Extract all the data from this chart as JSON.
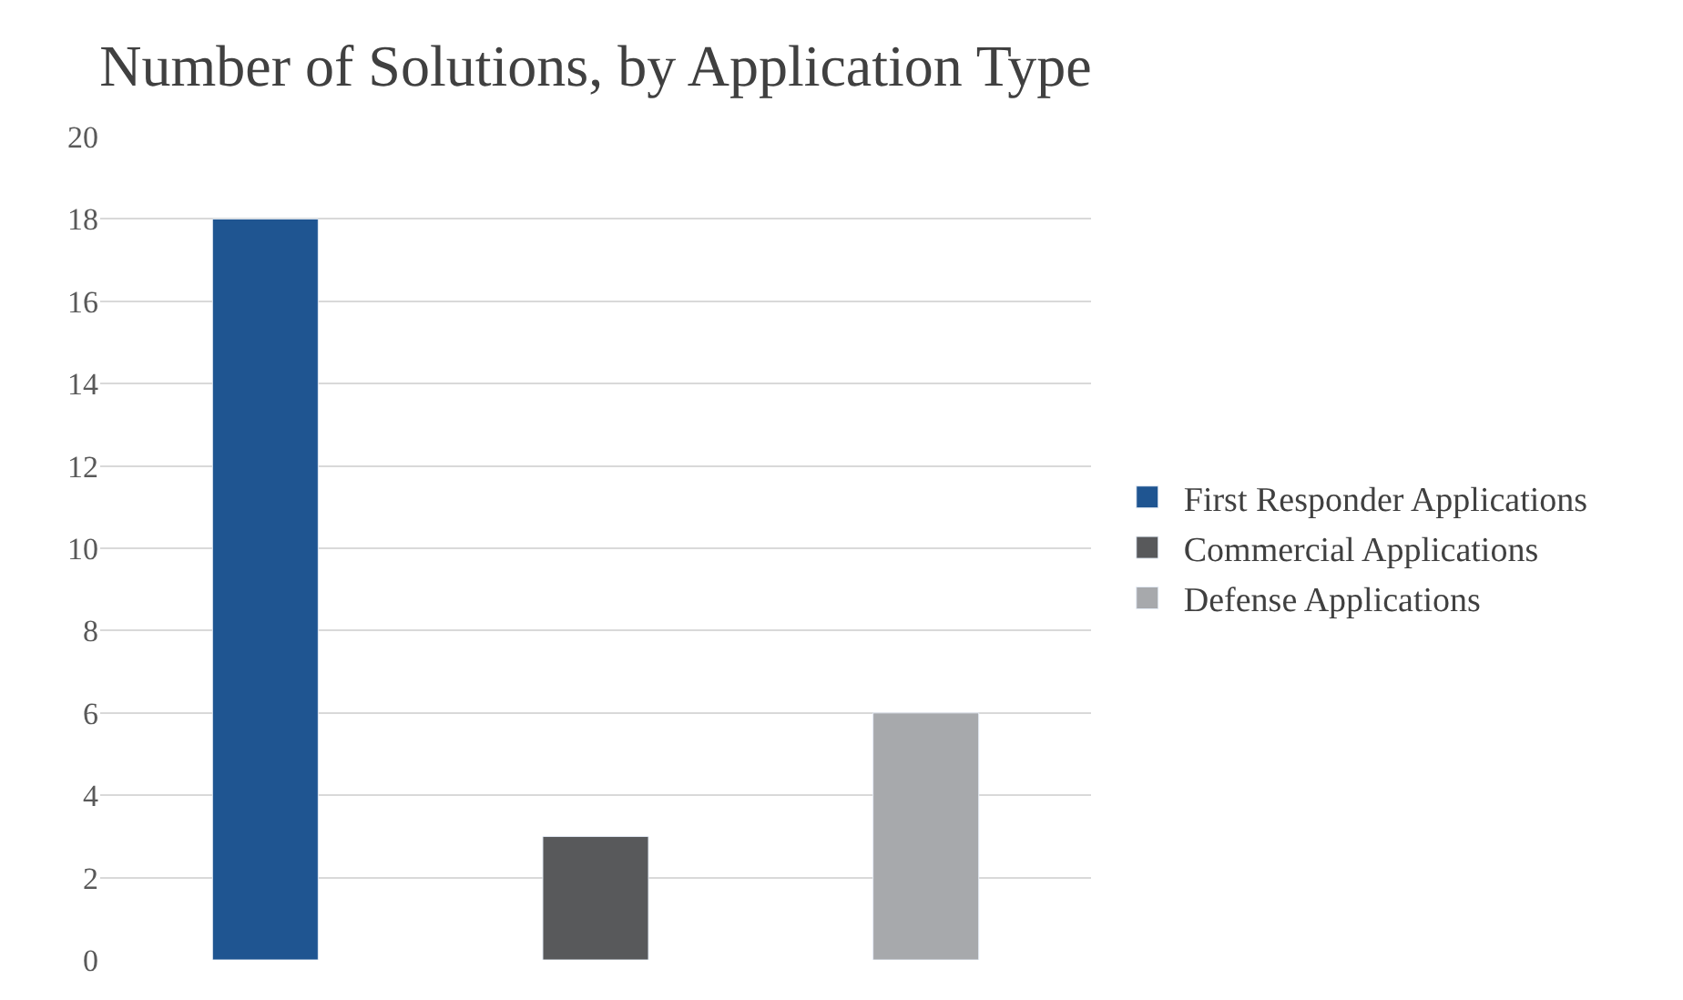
{
  "chart_data": {
    "type": "bar",
    "title": "Number of Solutions, by Application Type",
    "categories": [
      null,
      null,
      null
    ],
    "series": [
      {
        "name": "First Responder Applications",
        "color": "#1f5591",
        "values": [
          18,
          null,
          null
        ]
      },
      {
        "name": "Commercial Applications",
        "color": "#58595b",
        "values": [
          null,
          3,
          null
        ]
      },
      {
        "name": "Defense Applications",
        "color": "#a7a9ac",
        "values": [
          null,
          null,
          6
        ]
      }
    ],
    "ylim": [
      0,
      20
    ],
    "yticks": [
      0,
      2,
      4,
      6,
      8,
      10,
      12,
      14,
      16,
      18,
      20
    ],
    "grid": "y",
    "legend": "right",
    "tick_labels": "y"
  }
}
